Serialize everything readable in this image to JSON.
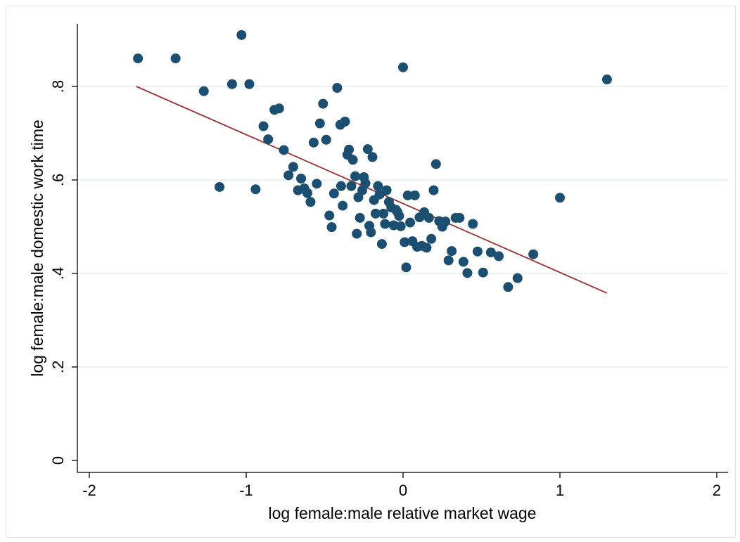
{
  "chart_data": {
    "type": "scatter",
    "title": "",
    "xlabel": "log female:male relative market wage",
    "ylabel": "log female:male domestic work time",
    "xlim": [
      -2.05,
      2.1
    ],
    "ylim": [
      -0.025,
      0.95
    ],
    "xticks": [
      -2,
      -1,
      0,
      1,
      2
    ],
    "xtick_labels": [
      "-2",
      "-1",
      "0",
      "1",
      "2"
    ],
    "yticks": [
      0,
      0.2,
      0.4,
      0.6,
      0.8
    ],
    "ytick_labels": [
      "0",
      ".2",
      ".4",
      ".6",
      ".8"
    ],
    "grid": "horizontal",
    "legend": "none",
    "colors": {
      "points": "#1b4f72",
      "fit_line": "#9c2f2f",
      "grid": "#dce9ea"
    },
    "fit_line": {
      "x": [
        -1.7,
        1.3
      ],
      "y": [
        0.8,
        0.358
      ]
    },
    "points": [
      [
        -1.69,
        0.86
      ],
      [
        -1.45,
        0.86
      ],
      [
        -1.27,
        0.79
      ],
      [
        -1.17,
        0.585
      ],
      [
        -1.09,
        0.805
      ],
      [
        -1.03,
        0.91
      ],
      [
        -0.98,
        0.805
      ],
      [
        -0.94,
        0.58
      ],
      [
        -0.89,
        0.715
      ],
      [
        -0.86,
        0.687
      ],
      [
        -0.82,
        0.75
      ],
      [
        -0.79,
        0.753
      ],
      [
        -0.76,
        0.664
      ],
      [
        -0.73,
        0.61
      ],
      [
        -0.7,
        0.628
      ],
      [
        -0.67,
        0.578
      ],
      [
        -0.65,
        0.603
      ],
      [
        -0.63,
        0.582
      ],
      [
        -0.61,
        0.572
      ],
      [
        -0.59,
        0.553
      ],
      [
        -0.57,
        0.68
      ],
      [
        -0.55,
        0.592
      ],
      [
        -0.53,
        0.721
      ],
      [
        -0.51,
        0.763
      ],
      [
        -0.49,
        0.686
      ],
      [
        -0.47,
        0.524
      ],
      [
        -0.455,
        0.499
      ],
      [
        -0.44,
        0.571
      ],
      [
        -0.42,
        0.797
      ],
      [
        -0.4,
        0.718
      ],
      [
        -0.395,
        0.587
      ],
      [
        -0.385,
        0.545
      ],
      [
        -0.37,
        0.725
      ],
      [
        -0.355,
        0.654
      ],
      [
        -0.345,
        0.665
      ],
      [
        -0.33,
        0.587
      ],
      [
        -0.32,
        0.643
      ],
      [
        -0.305,
        0.608
      ],
      [
        -0.295,
        0.485
      ],
      [
        -0.285,
        0.563
      ],
      [
        -0.275,
        0.519
      ],
      [
        -0.26,
        0.578
      ],
      [
        -0.25,
        0.606
      ],
      [
        -0.24,
        0.593
      ],
      [
        -0.225,
        0.666
      ],
      [
        -0.215,
        0.502
      ],
      [
        -0.205,
        0.488
      ],
      [
        -0.195,
        0.649
      ],
      [
        -0.185,
        0.557
      ],
      [
        -0.175,
        0.528
      ],
      [
        -0.16,
        0.587
      ],
      [
        -0.15,
        0.569
      ],
      [
        -0.135,
        0.463
      ],
      [
        -0.125,
        0.528
      ],
      [
        -0.115,
        0.506
      ],
      [
        -0.105,
        0.578
      ],
      [
        -0.09,
        0.553
      ],
      [
        -0.075,
        0.541
      ],
      [
        -0.06,
        0.503
      ],
      [
        -0.045,
        0.536
      ],
      [
        -0.035,
        0.531
      ],
      [
        -0.025,
        0.523
      ],
      [
        -0.015,
        0.501
      ],
      [
        0.0,
        0.841
      ],
      [
        0.01,
        0.467
      ],
      [
        0.02,
        0.413
      ],
      [
        0.03,
        0.567
      ],
      [
        0.045,
        0.509
      ],
      [
        0.06,
        0.469
      ],
      [
        0.075,
        0.567
      ],
      [
        0.09,
        0.457
      ],
      [
        0.105,
        0.52
      ],
      [
        0.12,
        0.459
      ],
      [
        0.135,
        0.531
      ],
      [
        0.15,
        0.455
      ],
      [
        0.165,
        0.519
      ],
      [
        0.18,
        0.474
      ],
      [
        0.195,
        0.578
      ],
      [
        0.21,
        0.634
      ],
      [
        0.23,
        0.512
      ],
      [
        0.25,
        0.5
      ],
      [
        0.27,
        0.511
      ],
      [
        0.29,
        0.428
      ],
      [
        0.31,
        0.448
      ],
      [
        0.335,
        0.519
      ],
      [
        0.36,
        0.519
      ],
      [
        0.385,
        0.425
      ],
      [
        0.41,
        0.401
      ],
      [
        0.445,
        0.506
      ],
      [
        0.475,
        0.447
      ],
      [
        0.51,
        0.402
      ],
      [
        0.56,
        0.445
      ],
      [
        0.61,
        0.437
      ],
      [
        0.67,
        0.371
      ],
      [
        0.73,
        0.39
      ],
      [
        0.83,
        0.441
      ],
      [
        1.0,
        0.562
      ],
      [
        1.3,
        0.815
      ]
    ]
  }
}
